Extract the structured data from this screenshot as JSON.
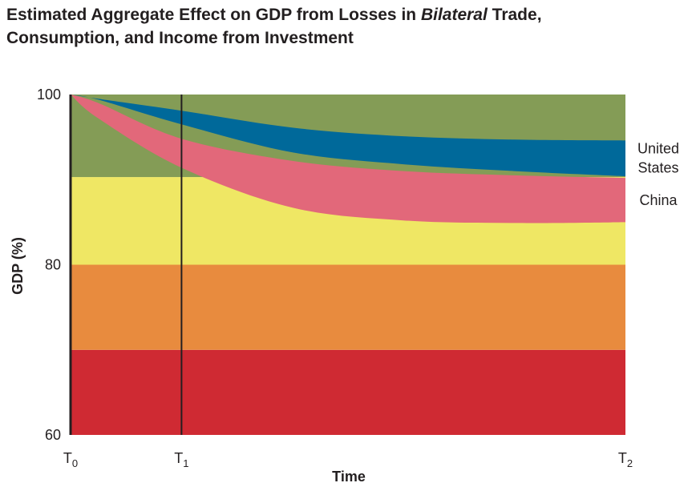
{
  "title": {
    "before": "Estimated Aggregate Effect on GDP from Losses in ",
    "emphasis": "Bilateral",
    "after": " Trade,",
    "line2": "Consumption, and Income from Investment"
  },
  "chart_data": {
    "type": "area",
    "xlabel": "Time",
    "ylabel": "GDP (%)",
    "ylim": [
      60,
      100
    ],
    "y_ticks": [
      60,
      80,
      100
    ],
    "x_ticks": [
      {
        "base": "T",
        "sub": "0",
        "t": 0
      },
      {
        "base": "T",
        "sub": "1",
        "t": 0.2
      },
      {
        "base": "T",
        "sub": "2",
        "t": 1
      }
    ],
    "vertical_line_at": 0.2,
    "background_bands": [
      {
        "from": 60,
        "to": 70,
        "color": "#cf2a33"
      },
      {
        "from": 70,
        "to": 80,
        "color": "#e88b3e"
      },
      {
        "from": 80,
        "to": 90.3,
        "color": "#efe764"
      },
      {
        "from": 90.3,
        "to": 100,
        "color": "#849c56"
      }
    ],
    "series": [
      {
        "name": "United States",
        "label_lines": [
          "United",
          "States"
        ],
        "color": "#00699a",
        "x": [
          0,
          0.05,
          0.2,
          0.4,
          0.6,
          0.8,
          1.0
        ],
        "upper": [
          100,
          99.5,
          98.1,
          96.1,
          95.1,
          94.7,
          94.6
        ],
        "lower": [
          100,
          99.4,
          96.5,
          93.2,
          91.8,
          91.0,
          90.4
        ]
      },
      {
        "name": "China",
        "label_lines": [
          "China"
        ],
        "color": "#e2687a",
        "x": [
          0,
          0.05,
          0.2,
          0.4,
          0.6,
          0.8,
          1.0
        ],
        "upper": [
          100,
          99.0,
          94.8,
          92.2,
          91.0,
          90.5,
          90.2
        ],
        "lower": [
          100,
          97.2,
          91.4,
          86.7,
          85.2,
          84.9,
          85.0
        ]
      }
    ]
  }
}
